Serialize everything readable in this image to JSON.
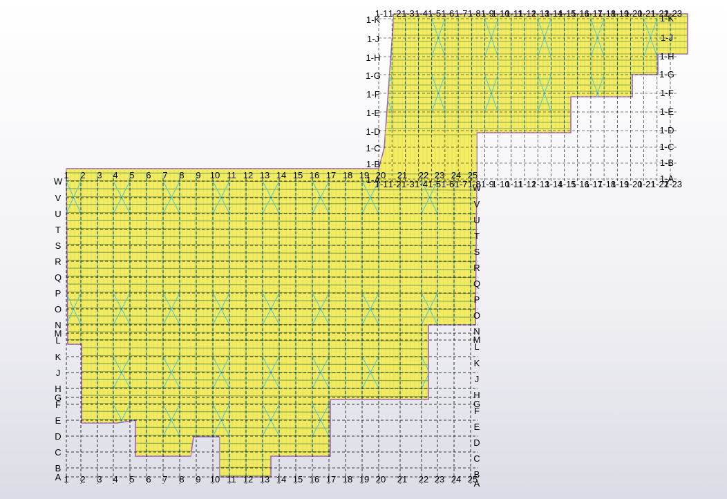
{
  "app": {
    "view": "3D model view - grid plan"
  },
  "colors": {
    "roof": "#f2ea5a",
    "purlin": "#e6e04a",
    "rafter": "#8aa84a",
    "brace": "#4cc6d6",
    "edge": "#9a5ac8",
    "grid": "#000000"
  },
  "main_grid": {
    "columns": [
      "1",
      "2",
      "3",
      "4",
      "5",
      "6",
      "7",
      "8",
      "9",
      "10",
      "11",
      "12",
      "13",
      "14",
      "15",
      "16",
      "17",
      "18",
      "19",
      "20",
      "21",
      "22",
      "23",
      "24",
      "25"
    ],
    "rows_top_to_bottom": [
      "W",
      "V",
      "U",
      "T",
      "S",
      "R",
      "Q",
      "P",
      "O",
      "N",
      "M",
      "L",
      "K",
      "J",
      "H",
      "G",
      "F",
      "E",
      "D",
      "C",
      "B",
      "A"
    ]
  },
  "annex_grid": {
    "columns": [
      "1-1",
      "1-2",
      "1-3",
      "1-4",
      "1-5",
      "1-6",
      "1-7",
      "1-8",
      "1-9",
      "1-10",
      "1-11",
      "1-12",
      "1-13",
      "1-14",
      "1-15",
      "1-16",
      "1-17",
      "1-18",
      "1-19",
      "1-20",
      "1-21",
      "1-22",
      "1-23"
    ],
    "rows_top_to_bottom": [
      "1-K",
      "1-J",
      "1-H",
      "1-G",
      "1-F",
      "1-E",
      "1-D",
      "1-C",
      "1-B",
      "1-A"
    ]
  }
}
